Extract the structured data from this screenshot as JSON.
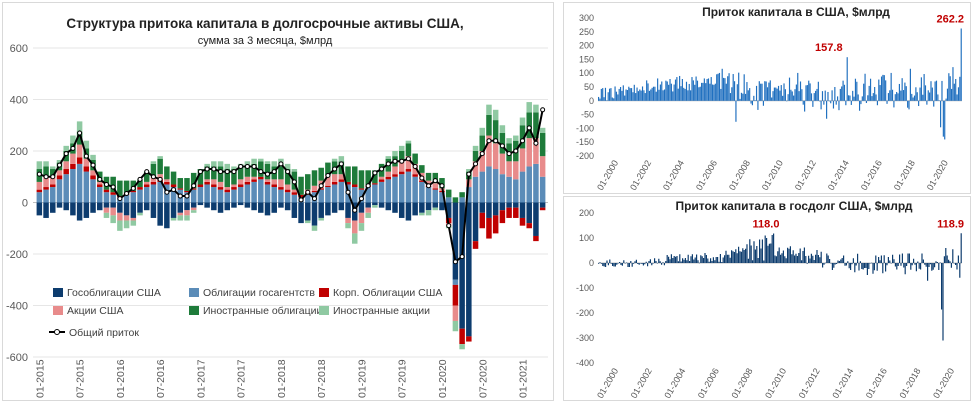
{
  "chart_data": [
    {
      "type": "bar",
      "stacked": true,
      "title": "Структура притока капитала в долгосрочные активы США,",
      "subtitle": "сумма за 3 месяца, $млрд",
      "ylim": [
        -600,
        600
      ],
      "yticks": [
        -600,
        -400,
        -200,
        0,
        200,
        400,
        600
      ],
      "grid": true,
      "legend": "bottom-left",
      "x_tick_labels": [
        "01-2015",
        "07-2015",
        "01-2016",
        "07-2016",
        "01-2017",
        "07-2017",
        "01-2018",
        "07-2018",
        "01-2019",
        "07-2019",
        "01-2020",
        "07-2020",
        "01-2021"
      ],
      "categories": [
        "01-2015",
        "02-2015",
        "03-2015",
        "04-2015",
        "05-2015",
        "06-2015",
        "07-2015",
        "08-2015",
        "09-2015",
        "10-2015",
        "11-2015",
        "12-2015",
        "01-2016",
        "02-2016",
        "03-2016",
        "04-2016",
        "05-2016",
        "06-2016",
        "07-2016",
        "08-2016",
        "09-2016",
        "10-2016",
        "11-2016",
        "12-2016",
        "01-2017",
        "02-2017",
        "03-2017",
        "04-2017",
        "05-2017",
        "06-2017",
        "07-2017",
        "08-2017",
        "09-2017",
        "10-2017",
        "11-2017",
        "12-2017",
        "01-2018",
        "02-2018",
        "03-2018",
        "04-2018",
        "05-2018",
        "06-2018",
        "07-2018",
        "08-2018",
        "09-2018",
        "10-2018",
        "11-2018",
        "12-2018",
        "01-2019",
        "02-2019",
        "03-2019",
        "04-2019",
        "05-2019",
        "06-2019",
        "07-2019",
        "08-2019",
        "09-2019",
        "10-2019",
        "11-2019",
        "12-2019",
        "01-2020",
        "02-2020",
        "03-2020",
        "04-2020",
        "05-2020",
        "06-2020",
        "07-2020",
        "08-2020",
        "09-2020",
        "10-2020",
        "11-2020",
        "12-2020",
        "01-2021",
        "02-2021",
        "03-2021",
        "04-2021"
      ],
      "series": [
        {
          "name": "Гособлигации США",
          "color": "#0d3c6e",
          "values": [
            -50,
            -60,
            -40,
            -20,
            -30,
            -50,
            -70,
            -60,
            -40,
            -30,
            -20,
            -20,
            -40,
            -50,
            -60,
            -40,
            -30,
            -60,
            -90,
            -100,
            -60,
            -40,
            -30,
            -20,
            -10,
            -20,
            -30,
            -40,
            -30,
            -20,
            -10,
            -20,
            -30,
            -40,
            -50,
            -40,
            -20,
            -30,
            -60,
            -80,
            -70,
            -90,
            -60,
            -50,
            -40,
            -30,
            -60,
            -70,
            -40,
            -20,
            -10,
            -20,
            -30,
            -40,
            -60,
            -70,
            -50,
            -40,
            -30,
            -20,
            -30,
            -60,
            -300,
            -490,
            -520,
            -150,
            -40,
            -60,
            -50,
            -30,
            -20,
            -20,
            -60,
            -80,
            -130,
            -20
          ]
        },
        {
          "name": "Облигации госагентств",
          "color": "#5b8cb8",
          "values": [
            40,
            50,
            60,
            90,
            110,
            130,
            150,
            120,
            90,
            60,
            40,
            30,
            20,
            30,
            40,
            50,
            60,
            70,
            80,
            70,
            60,
            50,
            40,
            50,
            60,
            70,
            60,
            50,
            40,
            50,
            60,
            70,
            80,
            90,
            70,
            60,
            50,
            40,
            30,
            20,
            30,
            40,
            50,
            60,
            70,
            80,
            70,
            60,
            50,
            60,
            70,
            80,
            90,
            100,
            110,
            120,
            100,
            80,
            60,
            50,
            40,
            20,
            -20,
            20,
            60,
            100,
            120,
            140,
            130,
            110,
            100,
            90,
            120,
            140,
            150,
            100
          ]
        },
        {
          "name": "Корп. Облигации США",
          "color": "#c00000",
          "values": [
            10,
            10,
            10,
            15,
            20,
            20,
            25,
            20,
            15,
            10,
            10,
            10,
            5,
            5,
            5,
            10,
            10,
            10,
            10,
            10,
            10,
            5,
            5,
            5,
            10,
            10,
            10,
            10,
            10,
            10,
            10,
            10,
            10,
            10,
            10,
            10,
            10,
            10,
            10,
            10,
            10,
            5,
            5,
            5,
            10,
            10,
            10,
            10,
            5,
            5,
            5,
            10,
            10,
            10,
            10,
            10,
            10,
            5,
            5,
            5,
            5,
            -20,
            -80,
            -60,
            -20,
            -30,
            -60,
            -80,
            -70,
            -50,
            -40,
            -40,
            -30,
            -20,
            -20,
            -10
          ]
        },
        {
          "name": "Акции США",
          "color": "#e88b8b",
          "values": [
            30,
            40,
            30,
            20,
            30,
            40,
            50,
            30,
            20,
            10,
            -20,
            -30,
            -30,
            -20,
            -10,
            0,
            10,
            20,
            20,
            10,
            0,
            -10,
            -20,
            -10,
            0,
            10,
            20,
            20,
            10,
            10,
            20,
            20,
            10,
            0,
            10,
            20,
            30,
            20,
            10,
            0,
            10,
            20,
            30,
            40,
            30,
            20,
            -20,
            -50,
            -40,
            -20,
            0,
            10,
            20,
            30,
            40,
            50,
            40,
            30,
            20,
            20,
            10,
            -10,
            -60,
            0,
            30,
            60,
            80,
            120,
            100,
            80,
            60,
            70,
            90,
            110,
            100,
            80
          ]
        },
        {
          "name": "Иностранные облигации",
          "color": "#1e7b3a",
          "values": [
            50,
            40,
            30,
            30,
            40,
            40,
            50,
            40,
            40,
            40,
            50,
            60,
            60,
            50,
            40,
            30,
            40,
            50,
            60,
            50,
            50,
            40,
            50,
            60,
            60,
            50,
            50,
            60,
            70,
            60,
            50,
            40,
            50,
            60,
            60,
            50,
            50,
            60,
            70,
            70,
            60,
            60,
            50,
            50,
            50,
            50,
            60,
            70,
            70,
            60,
            50,
            50,
            50,
            40,
            40,
            50,
            40,
            30,
            30,
            40,
            40,
            30,
            20,
            20,
            30,
            40,
            60,
            80,
            90,
            80,
            70,
            80,
            90,
            100,
            100,
            90
          ]
        },
        {
          "name": "Иностранные акции",
          "color": "#8fc9a2",
          "values": [
            30,
            20,
            10,
            10,
            20,
            30,
            40,
            30,
            20,
            0,
            -20,
            -30,
            -40,
            -30,
            -20,
            -10,
            0,
            10,
            10,
            0,
            -10,
            -20,
            -20,
            -10,
            0,
            10,
            20,
            20,
            20,
            10,
            10,
            20,
            20,
            10,
            10,
            20,
            30,
            20,
            10,
            0,
            -10,
            -20,
            -10,
            0,
            10,
            20,
            -20,
            -40,
            -30,
            -20,
            -10,
            0,
            10,
            20,
            20,
            10,
            0,
            -10,
            -20,
            -10,
            0,
            -10,
            -40,
            -20,
            10,
            20,
            30,
            40,
            40,
            30,
            20,
            20,
            30,
            40,
            30,
            20
          ]
        }
      ],
      "line_series": {
        "name": "Общий приток",
        "color": "#000000",
        "values": [
          110,
          100,
          100,
          145,
          190,
          210,
          270,
          180,
          145,
          90,
          70,
          60,
          15,
          35,
          55,
          90,
          120,
          100,
          90,
          40,
          50,
          25,
          25,
          65,
          120,
          130,
          130,
          120,
          120,
          120,
          140,
          140,
          140,
          120,
          110,
          120,
          150,
          120,
          80,
          10,
          40,
          15,
          65,
          105,
          130,
          150,
          40,
          -30,
          15,
          65,
          115,
          130,
          150,
          160,
          160,
          170,
          140,
          95,
          65,
          85,
          65,
          -90,
          -230,
          -210,
          110,
          150,
          190,
          240,
          240,
          220,
          190,
          200,
          240,
          290,
          230,
          360
        ]
      }
    },
    {
      "type": "bar",
      "title": "Приток капитала в США, $млрд",
      "color": "#1f6fbf",
      "ylim": [
        -200,
        300
      ],
      "yticks": [
        300,
        250,
        200,
        150,
        100,
        50,
        0,
        -50,
        -100,
        -150,
        -200
      ],
      "x_tick_labels": [
        "01-2000",
        "01-2002",
        "01-2004",
        "01-2006",
        "01-2008",
        "01-2010",
        "01-2012",
        "01-2014",
        "01-2016",
        "01-2018",
        "01-2020"
      ],
      "annotations": [
        {
          "text": "157.8",
          "x": "01-2014",
          "y": 157.8
        },
        {
          "text": "262.2",
          "x": "01-2021",
          "y": 262.2
        }
      ],
      "values": [
        14,
        8,
        43,
        46,
        13,
        47,
        1,
        31,
        44,
        46,
        12,
        9,
        52,
        33,
        23,
        43,
        50,
        36,
        56,
        19,
        41,
        39,
        51,
        46,
        46,
        31,
        58,
        28,
        48,
        35,
        41,
        37,
        52,
        38,
        28,
        74,
        63,
        36,
        41,
        47,
        51,
        51,
        33,
        81,
        40,
        59,
        70,
        38,
        41,
        73,
        70,
        58,
        79,
        62,
        34,
        59,
        77,
        86,
        44,
        90,
        53,
        79,
        47,
        43,
        69,
        38,
        61,
        38,
        86,
        74,
        58,
        88,
        73,
        49,
        51,
        65,
        65,
        81,
        64,
        79,
        81,
        62,
        86,
        59,
        58,
        62,
        96,
        98,
        101,
        43,
        116,
        83,
        82,
        62,
        89,
        100,
        28,
        49,
        97,
        71,
        -76,
        60,
        102,
        7,
        29,
        26,
        96,
        25,
        68,
        38,
        46,
        -10,
        -16,
        18,
        2,
        54,
        -33,
        71,
        62,
        62,
        -18,
        71,
        70,
        49,
        66,
        74,
        12,
        35,
        48,
        48,
        44,
        54,
        37,
        57,
        18,
        63,
        42,
        0,
        24,
        84,
        40,
        34,
        19,
        42,
        59,
        101,
        35,
        70,
        42,
        -14,
        -39,
        56,
        57,
        73,
        63,
        27,
        -22,
        28,
        36,
        43,
        69,
        -2,
        -31,
        35,
        -14,
        37,
        -65,
        32,
        -2,
        -9,
        38,
        -28,
        50,
        -14,
        16,
        -34,
        43,
        52,
        73,
        58,
        -16,
        158,
        20,
        19,
        -15,
        36,
        15,
        80,
        69,
        23,
        -36,
        -12,
        16,
        62,
        98,
        -8,
        20,
        54,
        80,
        17,
        28,
        50,
        23,
        -16,
        77,
        57,
        88,
        94,
        93,
        74,
        -11,
        28,
        38,
        101,
        40,
        -24,
        24,
        32,
        27,
        61,
        37,
        82,
        39,
        66,
        53,
        -25,
        -31,
        116,
        25,
        12,
        19,
        49,
        31,
        -19,
        48,
        85,
        22,
        97,
        56,
        -14,
        38,
        30,
        71,
        48,
        -21,
        70,
        73,
        23,
        1,
        -96,
        72,
        -130,
        -140,
        8,
        44,
        100,
        89,
        43,
        122,
        62,
        79,
        23,
        49,
        87,
        262
      ]
    },
    {
      "type": "bar",
      "title": "Приток капитала в госдолг США, $млрд",
      "color": "#0d3c6e",
      "ylim": [
        -400,
        200
      ],
      "yticks": [
        200,
        100,
        0,
        -100,
        -200,
        -300,
        -400
      ],
      "x_tick_labels": [
        "01-2000",
        "01-2002",
        "01-2004",
        "01-2006",
        "01-2008",
        "01-2010",
        "01-2012",
        "01-2014",
        "01-2016",
        "01-2018",
        "01-2020"
      ],
      "annotations": [
        {
          "text": "118.0",
          "x": "01-2010",
          "y": 118.0
        },
        {
          "text": "118.9",
          "x": "01-2021",
          "y": 118.9
        }
      ],
      "values": [
        -3,
        3,
        -3,
        -12,
        -14,
        -16,
        10,
        -9,
        14,
        -3,
        -12,
        -14,
        -14,
        -7,
        -2,
        4,
        -8,
        -11,
        11,
        -1,
        2,
        -16,
        -16,
        8,
        -15,
        -3,
        7,
        13,
        -4,
        -7,
        -1,
        -4,
        -10,
        -5,
        5,
        -13,
        8,
        15,
        -9,
        -2,
        19,
        8,
        -1,
        17,
        7,
        -7,
        3,
        -9,
        8,
        32,
        25,
        15,
        35,
        20,
        28,
        25,
        28,
        7,
        35,
        6,
        19,
        13,
        20,
        11,
        33,
        8,
        27,
        35,
        14,
        22,
        34,
        11,
        1,
        31,
        27,
        20,
        40,
        32,
        18,
        5,
        19,
        8,
        23,
        11,
        24,
        24,
        5,
        36,
        4,
        22,
        31,
        49,
        33,
        33,
        21,
        51,
        47,
        44,
        55,
        39,
        65,
        47,
        45,
        59,
        52,
        57,
        75,
        17,
        95,
        70,
        11,
        87,
        54,
        68,
        20,
        94,
        58,
        94,
        10,
        110,
        100,
        69,
        77,
        78,
        112,
        118,
        30,
        27,
        47,
        62,
        33,
        39,
        50,
        27,
        19,
        61,
        57,
        67,
        35,
        51,
        30,
        37,
        28,
        40,
        58,
        11,
        48,
        62,
        28,
        -3,
        29,
        18,
        37,
        29,
        12,
        33,
        52,
        32,
        23,
        45,
        -18,
        -7,
        1,
        38,
        30,
        16,
        -2,
        -28,
        -19,
        -6,
        -4,
        10,
        8,
        14,
        20,
        30,
        -11,
        -10,
        7,
        -21,
        -28,
        -5,
        19,
        -37,
        -10,
        37,
        -30,
        7,
        -24,
        -26,
        -20,
        -20,
        -48,
        -24,
        -1,
        1,
        -43,
        -29,
        30,
        -31,
        24,
        11,
        30,
        -41,
        31,
        -34,
        -9,
        24,
        10,
        -1,
        33,
        15,
        -14,
        -26,
        -12,
        34,
        -11,
        38,
        -18,
        -45,
        -12,
        38,
        38,
        -27,
        -9,
        17,
        -7,
        -33,
        6,
        -23,
        -26,
        38,
        14,
        -7,
        -15,
        -71,
        -16,
        -5,
        -31,
        -27,
        -17,
        7,
        4,
        -28,
        2,
        -186,
        -310,
        27,
        60,
        30,
        13,
        7,
        -19,
        55,
        -2,
        -8,
        -26,
        30,
        -59,
        119
      ]
    }
  ]
}
